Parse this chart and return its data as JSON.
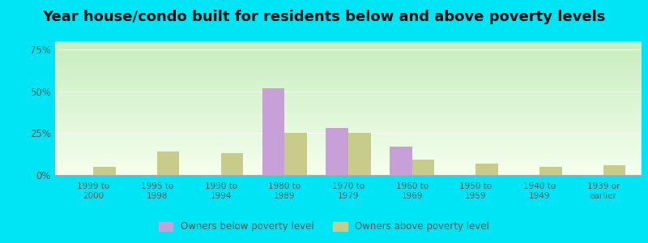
{
  "title": "Year house/condo built for residents below and above poverty levels",
  "categories": [
    "1999 to\n2000",
    "1995 to\n1998",
    "1990 to\n1994",
    "1980 to\n1989",
    "1970 to\n1979",
    "1960 to\n1969",
    "1950 to\n1959",
    "1940 to\n1949",
    "1939 or\nearlier"
  ],
  "below_poverty": [
    0,
    0,
    0,
    52,
    28,
    17,
    0,
    0,
    0
  ],
  "above_poverty": [
    5,
    14,
    13,
    25,
    25,
    9,
    7,
    5,
    6
  ],
  "below_color": "#c8a0d8",
  "above_color": "#c8cc8a",
  "yticks": [
    0,
    25,
    50,
    75
  ],
  "ylim": [
    0,
    80
  ],
  "outer_bg": "#00e5f5",
  "legend_below": "Owners below poverty level",
  "legend_above": "Owners above poverty level",
  "title_fontsize": 13,
  "bar_width": 0.35,
  "tick_color": "#555555",
  "grid_color": "#e0e8d8"
}
